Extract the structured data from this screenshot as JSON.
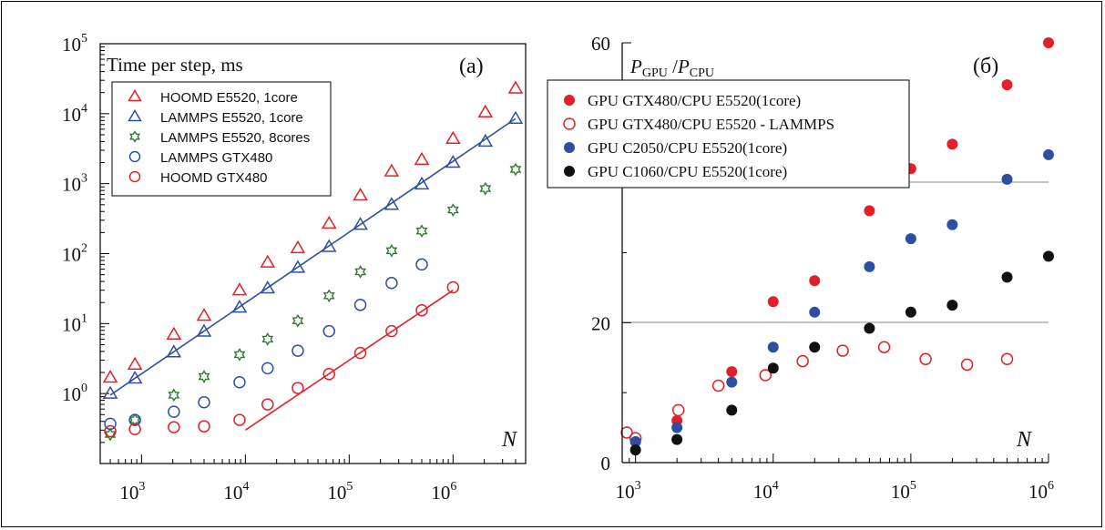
{
  "colors": {
    "red": "#e3202a",
    "blue": "#2e4fa1",
    "green": "#2d7a2d",
    "black": "#111111",
    "grid": "#888888"
  },
  "chart_data": [
    {
      "type": "scatter",
      "panel_label": "(a)",
      "title": "Time per step, ms",
      "xlabel": "N",
      "xscale": "log",
      "yscale": "log",
      "xlim": [
        400,
        5000000
      ],
      "ylim": [
        0.1,
        100000
      ],
      "x_ticks": [
        {
          "v": 1000,
          "m": "10",
          "e": "3"
        },
        {
          "v": 10000,
          "m": "10",
          "e": "4"
        },
        {
          "v": 100000,
          "m": "10",
          "e": "5"
        },
        {
          "v": 1000000,
          "m": "10",
          "e": "6"
        }
      ],
      "y_ticks": [
        {
          "v": 1,
          "m": "10",
          "e": "0"
        },
        {
          "v": 10,
          "m": "10",
          "e": "1"
        },
        {
          "v": 100,
          "m": "10",
          "e": "2"
        },
        {
          "v": 1000,
          "m": "10",
          "e": "3"
        },
        {
          "v": 10000,
          "m": "10",
          "e": "4"
        },
        {
          "v": 100000,
          "m": "10",
          "e": "5"
        }
      ],
      "legend_position": "top-left",
      "series": [
        {
          "name": "HOOMD  E5520, 1core",
          "marker": "triangle",
          "color": "#e3202a",
          "x": [
            500,
            864,
            2048,
            4000,
            8788,
            16384,
            32000,
            64000,
            128000,
            256000,
            500000,
            1000000,
            2048000,
            4000000
          ],
          "y": [
            1.7,
            2.6,
            7,
            13,
            30,
            75,
            120,
            270,
            680,
            1500,
            2200,
            4400,
            10500,
            23000
          ]
        },
        {
          "name": "LAMMPS  E5520, 1core",
          "marker": "triangle",
          "color": "#2e4fa1",
          "x": [
            500,
            864,
            2048,
            4000,
            8788,
            16384,
            32000,
            64000,
            128000,
            256000,
            500000,
            1000000,
            2048000,
            4000000
          ],
          "y": [
            1.0,
            1.65,
            3.9,
            7.7,
            17,
            32,
            63,
            125,
            260,
            500,
            980,
            2000,
            4000,
            8500
          ]
        },
        {
          "name": "LAMMPS  E5520, 8cores",
          "marker": "star",
          "color": "#2d7a2d",
          "x": [
            500,
            864,
            2048,
            4000,
            8788,
            16384,
            32000,
            64000,
            128000,
            256000,
            500000,
            1000000,
            2048000,
            4000000
          ],
          "y": [
            0.26,
            0.42,
            0.95,
            1.75,
            3.6,
            6,
            11,
            25,
            55,
            110,
            210,
            420,
            850,
            1600
          ]
        },
        {
          "name": "LAMMPS GTX480",
          "marker": "circle-open",
          "color": "#2e4fa1",
          "x": [
            500,
            864,
            2048,
            4000,
            8788,
            16384,
            32000,
            64000,
            128000,
            256000,
            500000
          ],
          "y": [
            0.37,
            0.42,
            0.55,
            0.75,
            1.45,
            2.3,
            4.1,
            7.8,
            18.5,
            38,
            70
          ]
        },
        {
          "name": "HOOMD GTX480",
          "marker": "circle-open",
          "color": "#e3202a",
          "x": [
            500,
            864,
            2048,
            4000,
            8788,
            16384,
            32000,
            64000,
            128000,
            256000,
            500000,
            1000000
          ],
          "y": [
            0.29,
            0.31,
            0.33,
            0.34,
            0.42,
            0.7,
            1.2,
            1.9,
            3.8,
            7.8,
            15.5,
            33
          ]
        }
      ],
      "fit_lines": [
        {
          "color": "#2e4fa1",
          "x": [
            500,
            4000000
          ],
          "y": [
            0.95,
            8500
          ]
        },
        {
          "color": "#e3202a",
          "x": [
            10000,
            1000000
          ],
          "y": [
            0.3,
            30
          ]
        }
      ]
    },
    {
      "type": "scatter",
      "panel_label": "(б)",
      "ylabel": "P_GPU / P_CPU",
      "xlabel": "N",
      "xscale": "log",
      "xlim": [
        800,
        1000000
      ],
      "ylim": [
        0,
        60
      ],
      "x_ticks": [
        {
          "v": 1000,
          "m": "10",
          "e": "3"
        },
        {
          "v": 10000,
          "m": "10",
          "e": "4"
        },
        {
          "v": 100000,
          "m": "10",
          "e": "5"
        },
        {
          "v": 1000000,
          "m": "10",
          "e": "6"
        }
      ],
      "y_ticks": [
        0,
        20,
        40,
        60
      ],
      "y_tick_labels": [
        "0",
        "20",
        "",
        "60"
      ],
      "grid_y": [
        20,
        40
      ],
      "legend_position": "top-left",
      "series": [
        {
          "name": "GPU GTX480/CPU E5520(1core)",
          "marker": "dot",
          "color": "#e3202a",
          "x": [
            1000,
            2000,
            5000,
            10000,
            20000,
            50000,
            100000,
            200000,
            500000,
            1000000
          ],
          "y": [
            3,
            6,
            13,
            23,
            26,
            36,
            42,
            45.5,
            54,
            60
          ]
        },
        {
          "name": "GPU GTX480/CPU E5520 - LAMMPS",
          "marker": "circle-open",
          "color": "#e3202a",
          "x": [
            864,
            1000,
            2048,
            4000,
            8788,
            16384,
            32000,
            64000,
            128000,
            256000,
            500000
          ],
          "y": [
            4.3,
            3.5,
            7.5,
            11,
            12.5,
            14.5,
            16,
            16.5,
            14.8,
            14,
            14.8
          ]
        },
        {
          "name": "GPU C2050/CPU E5520(1core)",
          "marker": "dot",
          "color": "#2e4fa1",
          "x": [
            1000,
            2000,
            5000,
            10000,
            20000,
            50000,
            100000,
            200000,
            500000,
            1000000
          ],
          "y": [
            3,
            5,
            11.5,
            16.5,
            21.5,
            28,
            32,
            34,
            40.5,
            44
          ]
        },
        {
          "name": "GPU C1060/CPU E5520(1core)",
          "marker": "dot",
          "color": "#111111",
          "x": [
            1000,
            2000,
            5000,
            10000,
            20000,
            50000,
            100000,
            200000,
            500000,
            1000000
          ],
          "y": [
            1.8,
            3.3,
            7.5,
            13.5,
            16.5,
            19.2,
            21.5,
            22.5,
            26.5,
            29.5
          ]
        }
      ]
    }
  ]
}
